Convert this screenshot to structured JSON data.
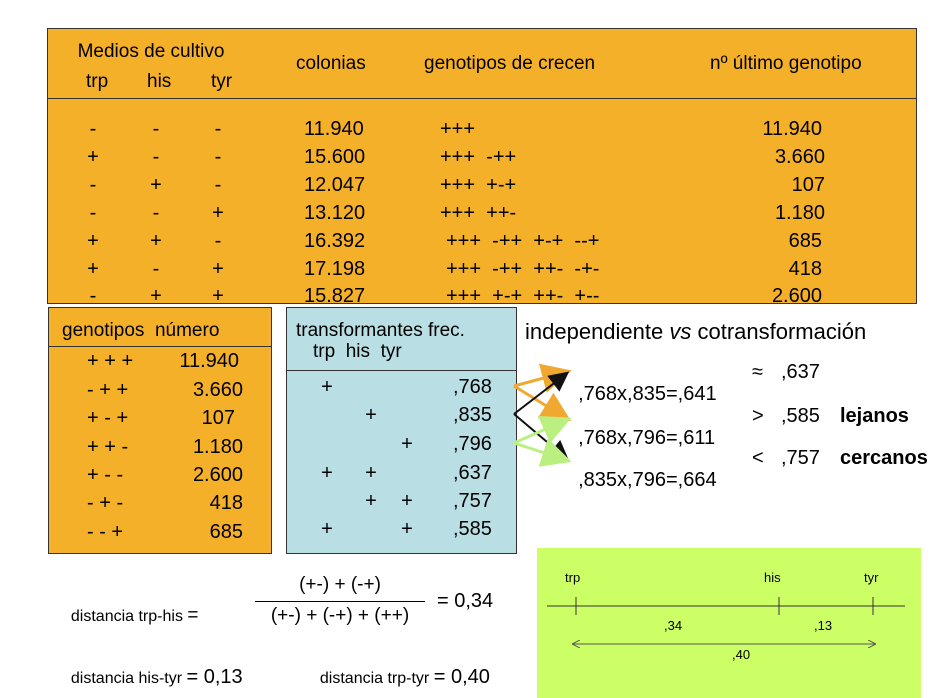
{
  "main_table": {
    "header_medios": "Medios de cultivo",
    "header_trp": "trp",
    "header_his": "his",
    "header_tyr": "tyr",
    "header_colonias": "colonias",
    "header_genotipos": "genotipos de crecen",
    "header_ultimo": "nº último genotipo",
    "rows": [
      {
        "trp": "-",
        "his": "-",
        "tyr": "-",
        "colonias": "11.940",
        "genotipos": "+++",
        "ultimo": "11.940"
      },
      {
        "trp": "+",
        "his": "-",
        "tyr": "-",
        "colonias": "15.600",
        "genotipos": "+++  -++",
        "ultimo": "3.660"
      },
      {
        "trp": "-",
        "his": "+",
        "tyr": "-",
        "colonias": "12.047",
        "genotipos": "+++  +-+",
        "ultimo": "107"
      },
      {
        "trp": "-",
        "his": "-",
        "tyr": "+",
        "colonias": "13.120",
        "genotipos": "+++  ++-",
        "ultimo": "1.180"
      },
      {
        "trp": "+",
        "his": "+",
        "tyr": "-",
        "colonias": "16.392",
        "genotipos": "+++  -++  +-+  --+",
        "ultimo": "685"
      },
      {
        "trp": "+",
        "his": "-",
        "tyr": "+",
        "colonias": "17.198",
        "genotipos": "+++  -++  ++-  -+-",
        "ultimo": "418"
      },
      {
        "trp": "-",
        "his": "+",
        "tyr": "+",
        "colonias": "15.827",
        "genotipos": "+++  +-+  ++-  +--",
        "ultimo": "2.600"
      }
    ]
  },
  "genotipos_table": {
    "header": "genotipos  número",
    "rows": [
      {
        "g": "+ + +",
        "n": "11.940"
      },
      {
        "g": "- + +",
        "n": "3.660"
      },
      {
        "g": "+ - +",
        "n": "107"
      },
      {
        "g": "+ + -",
        "n": "1.180"
      },
      {
        "g": "+ - -",
        "n": "2.600"
      },
      {
        "g": "- + -",
        "n": "418"
      },
      {
        "g": "- - +",
        "n": "685"
      }
    ]
  },
  "transf_table": {
    "header1": "transformantes frec.",
    "header2": "trp  his  tyr",
    "rows": [
      {
        "trp": "+",
        "his": "",
        "tyr": "",
        "f": ",768"
      },
      {
        "trp": "",
        "his": "+",
        "tyr": "",
        "f": ",835"
      },
      {
        "trp": "",
        "his": "",
        "tyr": "+",
        "f": ",796"
      },
      {
        "trp": "+",
        "his": "+",
        "tyr": "",
        "f": ",637"
      },
      {
        "trp": "",
        "his": "+",
        "tyr": "+",
        "f": ",757"
      },
      {
        "trp": "+",
        "his": "",
        "tyr": "+",
        "f": ",585"
      }
    ]
  },
  "comparison": {
    "title_part1": "independiente ",
    "title_vs": "vs",
    "title_part2": " cotransformación",
    "rows": [
      {
        "calc": ",768x,835=,641",
        "op": "≈",
        "val": ",637",
        "label": ""
      },
      {
        "calc": ",768x,796=,611",
        "op": ">",
        "val": ",585",
        "label": "lejanos"
      },
      {
        "calc": ",835x,796=,664",
        "op": "<",
        "val": ",757",
        "label": "cercanos"
      }
    ]
  },
  "distances": {
    "trp_his_label": "distancia trp-his",
    "eq": "=",
    "numerator": "(+-) + (-+)",
    "denominator": "(+-) + (-+) + (++)",
    "trp_his_value": "= 0,34",
    "his_tyr_label": "distancia his-tyr",
    "his_tyr_value": "= 0,13",
    "trp_tyr_label": "distancia trp-tyr",
    "trp_tyr_value": "= 0,40"
  },
  "map": {
    "trp": "trp",
    "his": "his",
    "tyr": "tyr",
    "d1": ",34",
    "d2": ",13",
    "d3": ",40"
  },
  "colors": {
    "orange": "#F5B02A",
    "blue": "#B9DFE4",
    "green": "#CCFF66",
    "arrow_orange": "#F0A830",
    "arrow_green": "#BBF080"
  }
}
